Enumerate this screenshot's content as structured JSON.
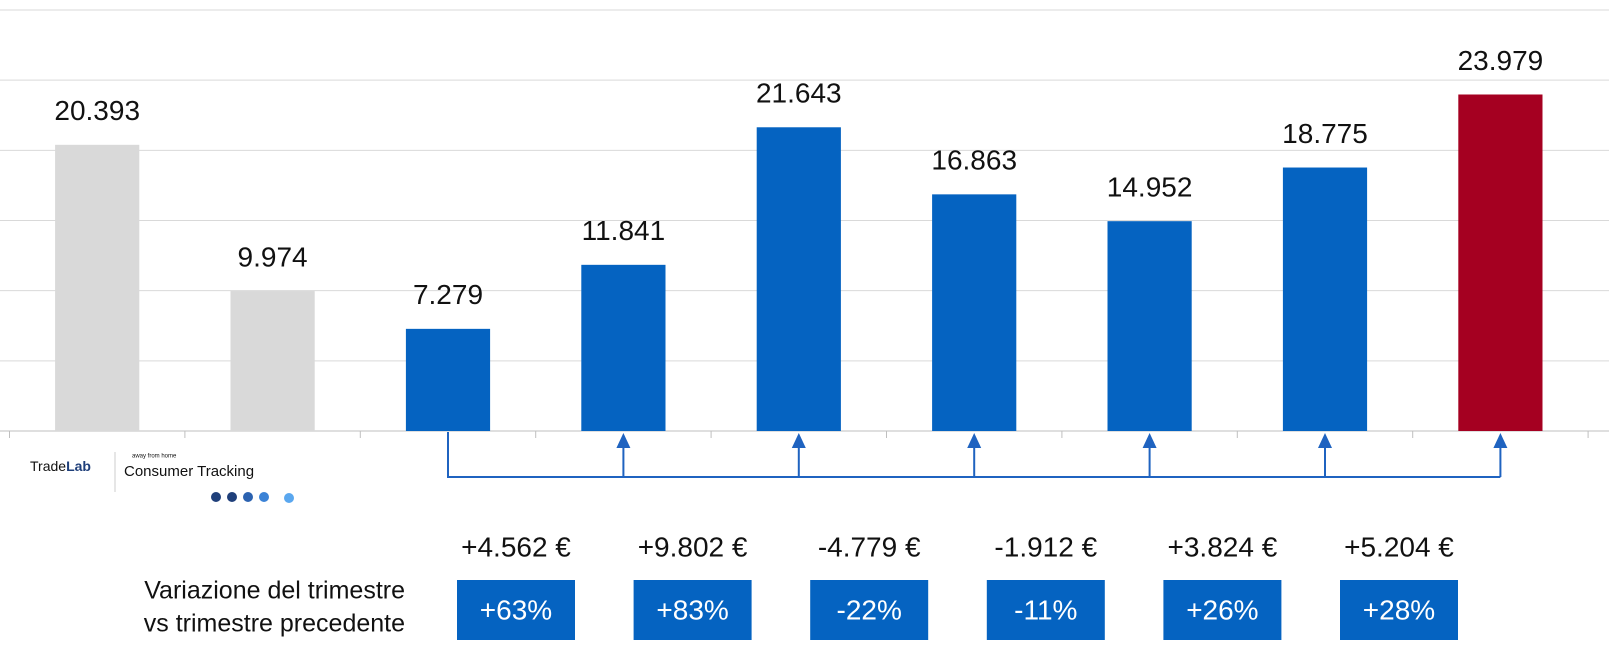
{
  "chart_data": {
    "type": "bar",
    "categories": [
      null,
      null,
      null,
      null,
      null,
      null,
      null,
      null,
      null
    ],
    "values": [
      20393,
      9974,
      7279,
      11841,
      21643,
      16863,
      14952,
      18775,
      23979
    ],
    "value_labels": [
      "20.393",
      "9.974",
      "7.279",
      "11.841",
      "21.643",
      "16.863",
      "14.952",
      "18.775",
      "23.979"
    ],
    "colors": [
      "#d9d9d9",
      "#d9d9d9",
      "#0563c1",
      "#0563c1",
      "#0563c1",
      "#0563c1",
      "#0563c1",
      "#0563c1",
      "#a50021"
    ],
    "ylim": [
      0,
      30000
    ],
    "yticks": [
      0,
      5000,
      10000,
      15000,
      20000,
      25000,
      30000
    ],
    "grid": true,
    "annotations": {
      "label": [
        "Variazione del trimestre",
        "vs trimestre precedente"
      ],
      "changes": [
        "+4.562 €",
        "+9.802 €",
        "-4.779 €",
        "-1.912 €",
        "+3.824 €",
        "+5.204 €"
      ],
      "percents": [
        "+63%",
        "+83%",
        "-22%",
        "-11%",
        "+26%",
        "+28%"
      ]
    }
  },
  "logo": {
    "brand_a": "Trade",
    "brand_b": "Lab",
    "tagline": "away from home",
    "product": "Consumer Tracking"
  }
}
